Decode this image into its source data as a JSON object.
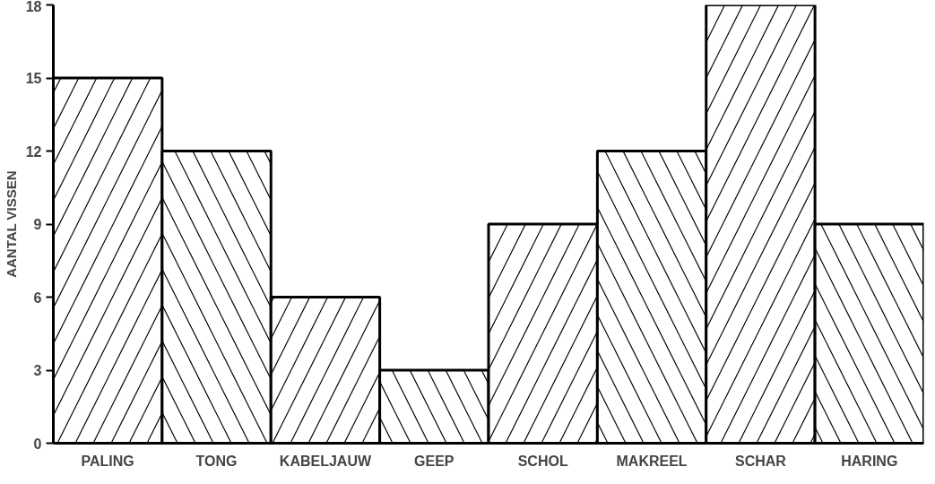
{
  "chart_data": {
    "type": "bar",
    "ylabel": "AANTAL VISSEN",
    "categories": [
      "PALING",
      "TONG",
      "KABELJAUW",
      "GEEP",
      "SCHOL",
      "MAKREEL",
      "SCHAR",
      "HARING"
    ],
    "values": [
      15,
      12,
      6,
      3,
      9,
      12,
      18,
      9
    ],
    "color": "#ffffff",
    "ylim": [
      0,
      18
    ],
    "yticks": [
      0,
      3,
      6,
      9,
      12,
      15,
      18
    ],
    "grid": false
  }
}
